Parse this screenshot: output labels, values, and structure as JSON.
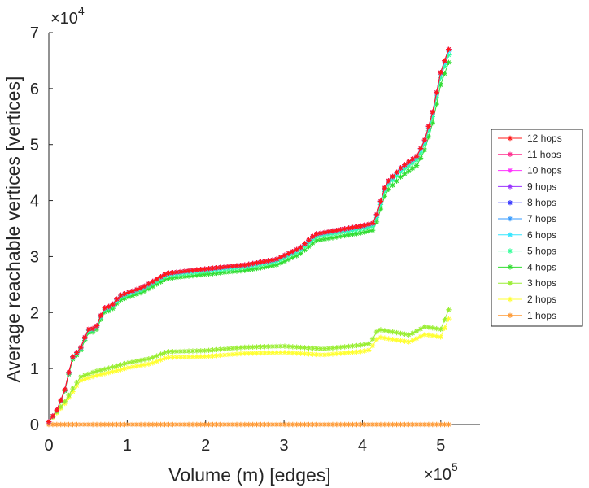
{
  "chart_data": {
    "type": "line",
    "xlabel": "Volume (m) [edges]",
    "ylabel": "Average reachable vertices [vertices]",
    "x_multiplier": {
      "base": "×10",
      "exp": "5"
    },
    "y_multiplier": {
      "base": "×10",
      "exp": "4"
    },
    "xlim": [
      0,
      5.5
    ],
    "ylim": [
      0,
      7
    ],
    "x_ticks": [
      "0",
      "1",
      "2",
      "3",
      "4",
      "5"
    ],
    "y_ticks": [
      "0",
      "1",
      "2",
      "3",
      "4",
      "5",
      "6",
      "7"
    ],
    "x_unit_scale": 100000,
    "y_unit_scale": 10000,
    "grid": false,
    "legend_position": "right",
    "series": [
      {
        "name": "12 hops",
        "color": "#ff1a1a",
        "profile": "high",
        "scale": 1.0
      },
      {
        "name": "11 hops",
        "color": "#ff2a8c",
        "profile": "high",
        "scale": 1.0
      },
      {
        "name": "10 hops",
        "color": "#ff33ff",
        "profile": "high",
        "scale": 1.0
      },
      {
        "name": "9 hops",
        "color": "#9933ff",
        "profile": "high",
        "scale": 1.0
      },
      {
        "name": "8 hops",
        "color": "#3333ff",
        "profile": "high",
        "scale": 1.0
      },
      {
        "name": "7 hops",
        "color": "#3399ff",
        "profile": "high",
        "scale": 1.0
      },
      {
        "name": "6 hops",
        "color": "#33e6ff",
        "profile": "high",
        "scale": 0.995
      },
      {
        "name": "5 hops",
        "color": "#33ff99",
        "profile": "high",
        "scale": 0.985
      },
      {
        "name": "4 hops",
        "color": "#33dd33",
        "profile": "high",
        "scale": 0.965
      },
      {
        "name": "3 hops",
        "color": "#99ee33",
        "profile": "low",
        "scale": 1.0
      },
      {
        "name": "2 hops",
        "color": "#ffff33",
        "profile": "low",
        "scale": 0.92
      },
      {
        "name": "1 hops",
        "color": "#ff9933",
        "profile": "flat",
        "scale": 1.0
      }
    ],
    "profiles": {
      "high": {
        "x": [
          0,
          0.1,
          0.2,
          0.3,
          0.4,
          0.5,
          0.6,
          0.7,
          0.8,
          0.9,
          1.0,
          1.2,
          1.5,
          2.0,
          2.5,
          2.9,
          3.2,
          3.4,
          3.6,
          4.0,
          4.15,
          4.3,
          4.5,
          4.6,
          4.7,
          4.8,
          4.9,
          5.0,
          5.1
        ],
        "y": [
          0.05,
          0.25,
          0.6,
          1.2,
          1.35,
          1.7,
          1.72,
          2.08,
          2.12,
          2.3,
          2.35,
          2.45,
          2.7,
          2.78,
          2.85,
          2.95,
          3.15,
          3.4,
          3.45,
          3.55,
          3.6,
          4.3,
          4.6,
          4.7,
          4.8,
          5.1,
          5.6,
          6.3,
          6.7
        ]
      },
      "low": {
        "x": [
          0,
          0.2,
          0.4,
          0.6,
          0.8,
          1.0,
          1.3,
          1.5,
          2.0,
          2.5,
          3.0,
          3.5,
          4.0,
          4.1,
          4.2,
          4.4,
          4.6,
          4.8,
          5.0,
          5.1
        ],
        "y": [
          0.05,
          0.4,
          0.85,
          0.95,
          1.02,
          1.1,
          1.18,
          1.3,
          1.32,
          1.38,
          1.4,
          1.35,
          1.42,
          1.45,
          1.7,
          1.65,
          1.6,
          1.75,
          1.7,
          2.05
        ]
      },
      "flat": {
        "x": [
          0,
          5.1
        ],
        "y": [
          0,
          0
        ]
      }
    }
  }
}
